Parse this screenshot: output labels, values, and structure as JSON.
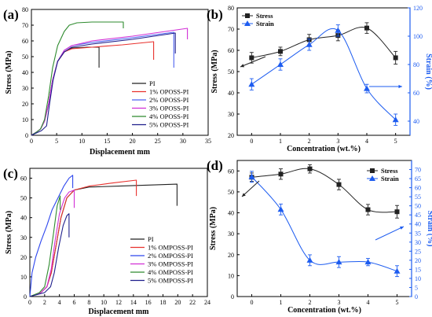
{
  "chart_data": [
    {
      "panel": "(a)",
      "type": "line",
      "xlabel": "Displacement mm",
      "ylabel": "Stress (MPa)",
      "xlim": [
        0,
        35
      ],
      "ylim": [
        0,
        80
      ],
      "xticks": [
        0,
        5,
        10,
        15,
        20,
        25,
        30,
        35
      ],
      "yticks": [
        0,
        10,
        20,
        30,
        40,
        50,
        60,
        70,
        80
      ],
      "legend_position": "bottom-right",
      "series": [
        {
          "name": "PI",
          "color": "#222222",
          "x": [
            0,
            1.0,
            1.8,
            2.6,
            3.4,
            4.2,
            5.2,
            6.5,
            8,
            11,
            13.4,
            13.4
          ],
          "y": [
            0,
            2,
            4,
            9,
            20,
            35,
            47,
            53,
            55.5,
            56,
            56,
            43
          ]
        },
        {
          "name": "1% OPOSS-PI",
          "color": "#e8312d",
          "x": [
            0,
            1.0,
            1.8,
            2.6,
            3.4,
            4.2,
            5.2,
            6.5,
            8,
            12,
            18,
            24.2,
            24.2
          ],
          "y": [
            0,
            2,
            4,
            9,
            20,
            35,
            47,
            53,
            55,
            56,
            57.5,
            59.5,
            48
          ]
        },
        {
          "name": "2% OPOSS-PI",
          "color": "#4d62f0",
          "x": [
            0,
            1.0,
            1.8,
            2.6,
            3.4,
            4.2,
            5.2,
            6.5,
            8,
            12,
            20,
            28.2,
            28.2
          ],
          "y": [
            0,
            2,
            4,
            9,
            20,
            35,
            47,
            54,
            57,
            59,
            62,
            65.5,
            43
          ]
        },
        {
          "name": "3% OPOSS-PI",
          "color": "#d12fd5",
          "x": [
            0,
            1.0,
            1.8,
            2.6,
            3.4,
            4.2,
            5.2,
            6.5,
            8,
            12,
            20,
            30.9,
            30.9
          ],
          "y": [
            0,
            2,
            4,
            9,
            20,
            35,
            47,
            54,
            57,
            60,
            63,
            68,
            61
          ]
        },
        {
          "name": "4% OPOSS-PI",
          "color": "#2e8b2e",
          "x": [
            0,
            1.0,
            1.8,
            2.6,
            3.4,
            4.2,
            5.2,
            6.5,
            7.5,
            9,
            12,
            16,
            18.2,
            18.2
          ],
          "y": [
            0,
            2,
            4,
            10,
            25,
            43,
            57,
            66,
            70,
            71.5,
            72,
            72,
            72,
            68
          ]
        },
        {
          "name": "5% OPOSS-PI",
          "color": "#1f1f8c",
          "x": [
            0,
            2.0,
            3.0,
            3.6,
            4.3,
            5.2,
            6.5,
            8,
            12,
            20,
            28.5,
            28.5
          ],
          "y": [
            0,
            3,
            6,
            20,
            35,
            47,
            53,
            56,
            58,
            61,
            65,
            52
          ]
        }
      ]
    },
    {
      "panel": "(b)",
      "type": "line",
      "xlabel": "Concentration (wt.%)",
      "ylabel": "Stress (MPa)",
      "ylabel2": "Strain (%)",
      "xlim": [
        -0.5,
        5.5
      ],
      "ylim": [
        20,
        80
      ],
      "y2lim": [
        30,
        120
      ],
      "xticks": [
        0,
        1,
        2,
        3,
        4,
        5
      ],
      "yticks": [
        20,
        30,
        40,
        50,
        60,
        70,
        80
      ],
      "y2ticks": [
        40,
        60,
        80,
        100,
        120
      ],
      "legend_position": "top-left",
      "series": [
        {
          "name": "Stress",
          "axis": "left",
          "color": "#222222",
          "marker": "square",
          "x": [
            0,
            1,
            2,
            3,
            4,
            5
          ],
          "y": [
            56.5,
            59.5,
            65,
            67,
            70.5,
            56.5
          ],
          "err": [
            2.5,
            2,
            2.5,
            2.5,
            2.5,
            3
          ]
        },
        {
          "name": "Strain",
          "axis": "right",
          "color": "#1d5cf0",
          "marker": "triangle",
          "x": [
            0,
            1,
            2,
            3,
            4,
            5
          ],
          "y": [
            66,
            80,
            94,
            104,
            63,
            41
          ],
          "err": [
            4,
            4,
            4,
            4,
            3,
            4
          ]
        }
      ]
    },
    {
      "panel": "(c)",
      "type": "line",
      "xlabel": "Displacement mm",
      "ylabel": "Stress (MPa)",
      "xlim": [
        0,
        24
      ],
      "ylim": [
        0,
        65
      ],
      "xticks": [
        0,
        2,
        4,
        6,
        8,
        10,
        12,
        14,
        16,
        18,
        20,
        22,
        24
      ],
      "yticks": [
        0,
        10,
        20,
        30,
        40,
        50,
        60
      ],
      "legend_position": "bottom-right",
      "series": [
        {
          "name": "PI",
          "color": "#222222",
          "x": [
            0,
            1.5,
            2.3,
            2.9,
            3.5,
            4.2,
            5.0,
            6,
            8,
            12,
            16,
            19.9,
            19.9
          ],
          "y": [
            0,
            2,
            5,
            12,
            25,
            40,
            50,
            54,
            55.5,
            56,
            56.5,
            57,
            46
          ]
        },
        {
          "name": "1% OMPOSS-PI",
          "color": "#e8312d",
          "x": [
            0,
            1.5,
            2.3,
            2.9,
            3.5,
            4.2,
            5.0,
            6,
            8,
            11,
            14.4,
            14.4
          ],
          "y": [
            0,
            2,
            5,
            12,
            25,
            40,
            50,
            54,
            56,
            57.5,
            59,
            51
          ]
        },
        {
          "name": "2% OMPOSS-PI",
          "color": "#2d46ee",
          "x": [
            0,
            0.3,
            0.8,
            1.5,
            2.3,
            3.0,
            3.8,
            4.6,
            5.3,
            5.8,
            5.8
          ],
          "y": [
            0,
            12,
            20,
            28,
            36,
            44,
            50,
            56,
            60,
            61.5,
            55
          ]
        },
        {
          "name": "3% OMPOSS-PI",
          "color": "#d12fd5",
          "x": [
            0,
            1.5,
            2.3,
            2.9,
            3.4,
            4.0,
            4.7,
            5.3,
            6.0,
            6.0
          ],
          "y": [
            0,
            2,
            5,
            14,
            28,
            42,
            50,
            53,
            54,
            45
          ]
        },
        {
          "name": "4% OMPOSS-PI",
          "color": "#2e8b2e",
          "x": [
            0,
            1.3,
            2.0,
            2.6,
            3.2,
            3.7,
            4.1,
            4.1
          ],
          "y": [
            0,
            2,
            5,
            16,
            32,
            46,
            51,
            44
          ]
        },
        {
          "name": "5% OMPOSS-PI",
          "color": "#1f1f8c",
          "x": [
            0,
            2.0,
            2.8,
            3.3,
            3.9,
            4.5,
            5.0,
            5.3,
            5.3
          ],
          "y": [
            0,
            2,
            5,
            12,
            25,
            36,
            41,
            42,
            30
          ]
        }
      ]
    },
    {
      "panel": "(d)",
      "type": "line",
      "xlabel": "Concentration (wt.%)",
      "ylabel": "Stress (MPa)",
      "ylabel2": "Strain (%)",
      "xlim": [
        -0.5,
        5.5
      ],
      "ylim": [
        0,
        65
      ],
      "y2lim": [
        0,
        75
      ],
      "xticks": [
        0,
        1,
        2,
        3,
        4,
        5
      ],
      "yticks": [
        0,
        10,
        20,
        30,
        40,
        50,
        60
      ],
      "y2ticks": [
        0,
        5,
        10,
        15,
        20,
        25,
        30,
        35,
        40,
        45,
        50,
        55,
        60,
        65,
        70
      ],
      "legend_position": "top-right",
      "series": [
        {
          "name": "Stress",
          "axis": "left",
          "color": "#222222",
          "marker": "square",
          "x": [
            0,
            1,
            2,
            3,
            4,
            5
          ],
          "y": [
            57,
            58.5,
            61,
            53.5,
            41.5,
            40.5
          ],
          "err": [
            2,
            2.5,
            2,
            2.5,
            2.5,
            3
          ]
        },
        {
          "name": "Strain",
          "axis": "right",
          "color": "#1d5cf0",
          "marker": "triangle",
          "x": [
            0,
            1,
            2,
            3,
            4,
            5
          ],
          "y": [
            66,
            48,
            20,
            19,
            19,
            14
          ],
          "err": [
            3,
            3,
            3,
            3,
            2,
            3
          ]
        }
      ]
    }
  ]
}
